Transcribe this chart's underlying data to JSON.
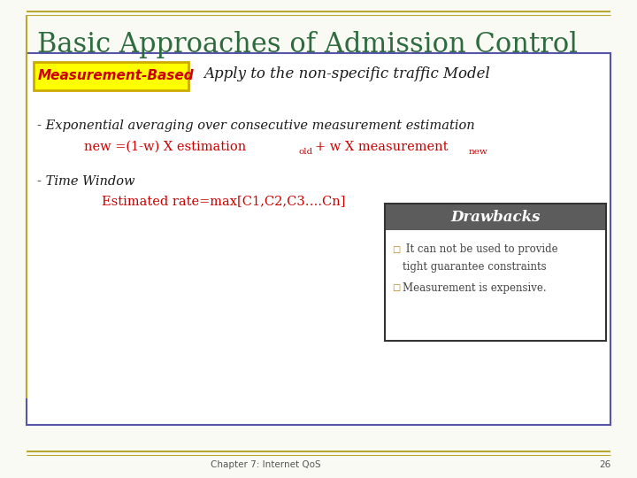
{
  "title": "Basic Approaches of Admission Control",
  "title_color": "#2E6B3E",
  "bg_color": "#FAFAF5",
  "slide_border_color": "#B8A830",
  "main_box_border_color": "#5555AA",
  "label_measurement_based": "Measurement-Based",
  "label_apply": "Apply to the non-specific traffic Model",
  "line1": "- Exponential averaging over consecutive measurement estimation",
  "line2a": "new =(1-w) X estimation",
  "line2_sub1": "old",
  "line2b": "+ w X measurement",
  "line2_sub2": "new",
  "line3": "- Time Window",
  "line4": "Estimated rate=max[C1,C2,C3….Cn]",
  "drawbacks_title": "Drawbacks",
  "drawbacks_bg": "#5C5C5C",
  "drawbacks_title_color": "#FFFFFF",
  "bullet_color": "#B8860B",
  "db_bullet1a": " It can not be used to provide",
  "db_bullet1b": "tight guarantee constraints",
  "db_bullet2": "Measurement is expensive.",
  "footer": "Chapter 7: Internet QoS",
  "page_num": "26",
  "red_color": "#CC0000",
  "dark_color": "#1A1A1A",
  "gray_text": "#555555"
}
